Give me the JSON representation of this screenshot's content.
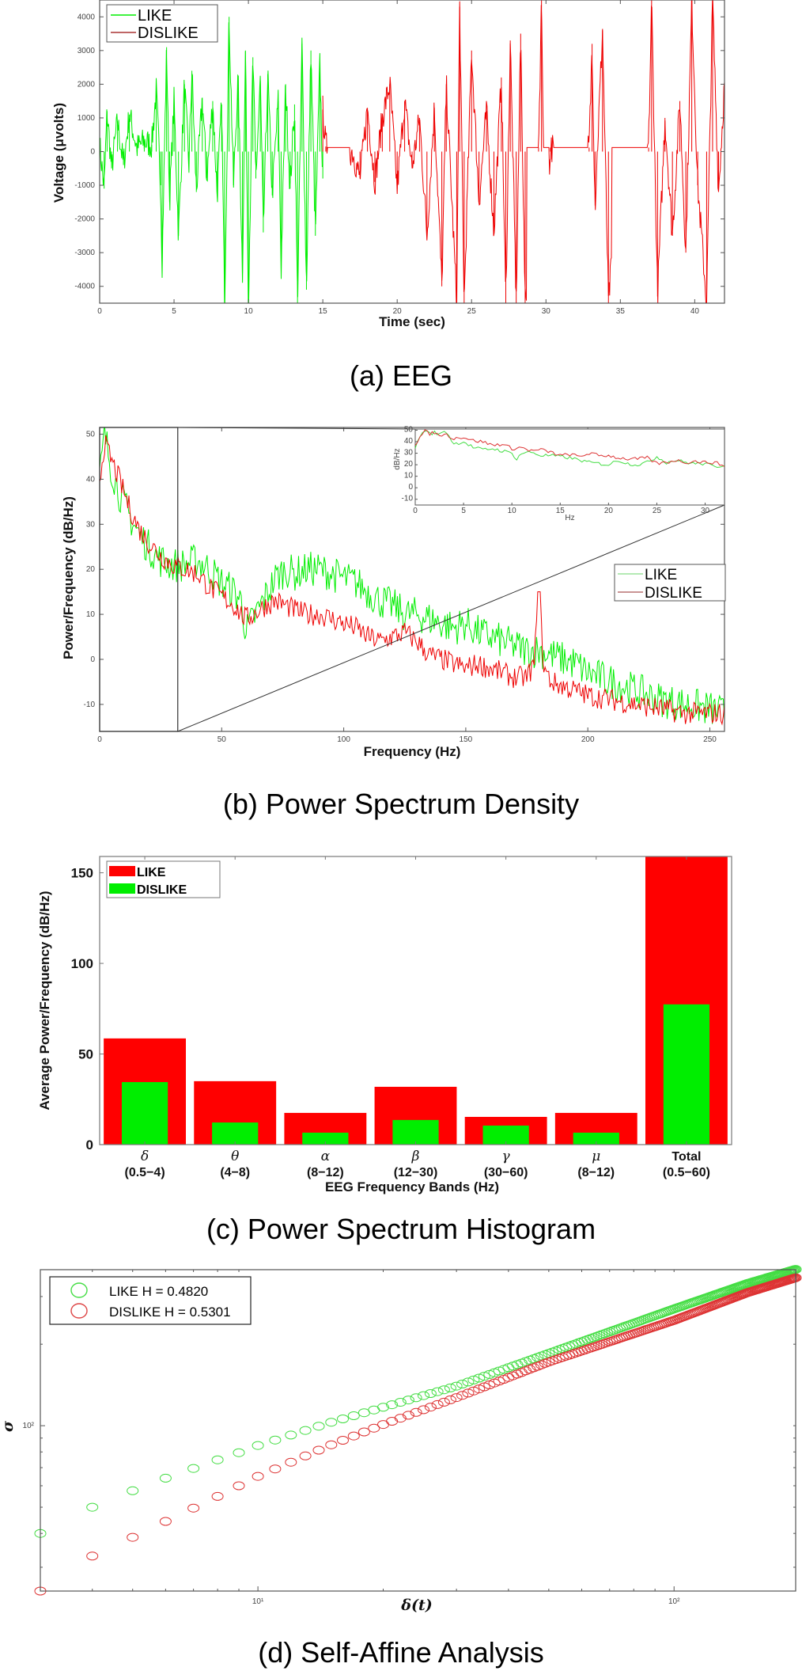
{
  "colors": {
    "like": "#00ee00",
    "dislike": "#ee0000",
    "axis": "#555555"
  },
  "chart_data": [
    {
      "id": "eeg",
      "type": "line",
      "caption": "(a) EEG",
      "xlabel": "Time (sec)",
      "ylabel": "Voltage (μvolts)",
      "xlim": [
        0,
        42
      ],
      "ylim": [
        -4500,
        4500
      ],
      "xticks": [
        0,
        5,
        10,
        15,
        20,
        25,
        30,
        35,
        40
      ],
      "yticks": [
        -4000,
        -3000,
        -2000,
        -1000,
        0,
        1000,
        2000,
        3000,
        4000
      ],
      "legend": {
        "placement": "top-left",
        "entries": [
          "LIKE",
          "DISLIKE"
        ]
      },
      "series": [
        {
          "name": "LIKE",
          "color": "like",
          "t_range": [
            0,
            15
          ],
          "x": [
            0,
            0.3,
            0.5,
            0.8,
            1.2,
            1.6,
            2,
            2.5,
            3,
            3.5,
            3.8,
            4.1,
            4.2,
            4.5,
            4.7,
            5,
            5.3,
            5.7,
            6,
            6.2,
            6.5,
            6.9,
            7.2,
            7.6,
            7.9,
            8.2,
            8.4,
            8.7,
            9,
            9.3,
            9.6,
            9.8,
            10,
            10.3,
            10.5,
            10.8,
            11,
            11.3,
            11.6,
            12,
            12.2,
            12.5,
            12.8,
            13.1,
            13.3,
            13.6,
            13.9,
            14.2,
            14.5,
            14.8,
            15
          ],
          "y": [
            200,
            -1100,
            1200,
            -500,
            900,
            -400,
            1100,
            100,
            300,
            200,
            1800,
            -1000,
            -3300,
            3100,
            -1500,
            1500,
            -2500,
            2000,
            -400,
            2400,
            -1200,
            1600,
            -800,
            1500,
            -1300,
            1400,
            -4500,
            4000,
            -1000,
            2200,
            -3600,
            3000,
            -4500,
            2800,
            -800,
            2100,
            -2400,
            2300,
            -1300,
            1500,
            -3500,
            2000,
            -1100,
            1400,
            -4500,
            3200,
            -4100,
            3000,
            -2500,
            2600,
            -800
          ]
        },
        {
          "name": "DISLIKE",
          "color": "dislike",
          "t_range": [
            15,
            42
          ],
          "x": [
            15,
            15.2,
            16,
            17,
            17.5,
            18,
            18.5,
            19,
            19.5,
            20,
            20.5,
            21,
            21.5,
            22,
            22.5,
            23,
            23.3,
            24,
            24.2,
            24.5,
            25,
            25.5,
            26,
            26.5,
            27,
            27.3,
            27.6,
            28,
            28.3,
            28.6,
            29.5,
            29.7,
            30,
            30.3,
            31,
            32.9,
            33.1,
            33.3,
            33.8,
            34.2,
            35,
            35.9,
            36.1,
            36.9,
            37.1,
            37.5,
            38,
            38.5,
            39,
            39.4,
            39.8,
            40.2,
            40.8,
            41.2,
            41.6,
            42
          ],
          "y": [
            1250,
            150,
            120,
            0,
            -800,
            1300,
            -900,
            1000,
            2000,
            -1100,
            1500,
            -500,
            1000,
            -2500,
            1300,
            -4000,
            2000,
            -4500,
            4300,
            -4500,
            3000,
            -1500,
            1200,
            -2400,
            2200,
            -4500,
            3300,
            -4500,
            3500,
            -4500,
            120,
            4500,
            -4500,
            120,
            120,
            120,
            3200,
            -1600,
            3600,
            -4500,
            120,
            100,
            450,
            120,
            4500,
            -4300,
            1000,
            -2500,
            1500,
            -3000,
            4500,
            -1000,
            -4500,
            4500,
            -1200,
            2000
          ]
        }
      ]
    },
    {
      "id": "psd",
      "type": "line",
      "caption": "(b) Power Spectrum Density",
      "xlabel": "Frequency (Hz)",
      "ylabel": "Power/Frequency (dB/Hz)",
      "xlim": [
        0,
        256
      ],
      "ylim": [
        -16,
        51.5
      ],
      "xticks": [
        0,
        50,
        100,
        150,
        200,
        250
      ],
      "yticks": [
        -10,
        0,
        10,
        20,
        30,
        40,
        50
      ],
      "legend": {
        "placement": "center-right",
        "entries": [
          "LIKE",
          "DISLIKE"
        ]
      },
      "series": [
        {
          "name": "LIKE",
          "color": "like",
          "x": [
            0,
            2,
            5,
            8,
            12,
            16,
            20,
            25,
            30,
            35,
            40,
            45,
            50,
            55,
            58,
            60,
            63,
            68,
            72,
            76,
            80,
            85,
            90,
            95,
            100,
            105,
            110,
            115,
            120,
            125,
            130,
            135,
            140,
            145,
            150,
            155,
            160,
            165,
            170,
            175,
            180,
            185,
            190,
            195,
            200,
            210,
            220,
            230,
            240,
            250,
            256
          ],
          "y": [
            40,
            50,
            42,
            37,
            32,
            28,
            25,
            22,
            21,
            21,
            22,
            20,
            17,
            15,
            13,
            6,
            9,
            14,
            18,
            20,
            19,
            20,
            20,
            19,
            18,
            17,
            15,
            13,
            12,
            10,
            10,
            9,
            8,
            7,
            8,
            6,
            5,
            4,
            3,
            2,
            2,
            1,
            0,
            -1,
            -3,
            -5,
            -7,
            -9,
            -10,
            -11,
            -12
          ]
        },
        {
          "name": "DISLIKE",
          "color": "dislike",
          "x": [
            0,
            2,
            5,
            8,
            12,
            16,
            20,
            25,
            30,
            35,
            40,
            45,
            50,
            55,
            58,
            60,
            63,
            68,
            72,
            76,
            80,
            85,
            90,
            95,
            100,
            105,
            110,
            115,
            120,
            125,
            130,
            135,
            140,
            145,
            150,
            155,
            160,
            165,
            170,
            175,
            178,
            180,
            182,
            185,
            190,
            200,
            210,
            220,
            230,
            240,
            250,
            256
          ],
          "y": [
            40,
            48,
            44,
            40,
            34,
            29,
            26,
            23,
            21,
            20,
            19,
            16,
            14,
            12,
            10,
            9,
            10,
            12,
            13,
            12,
            11,
            10,
            10,
            9,
            8,
            7,
            5,
            4,
            5,
            6,
            4,
            1,
            0,
            -1,
            -2,
            -1,
            -2,
            -3,
            -4,
            -4,
            -1,
            15,
            -2,
            -5,
            -6,
            -8,
            -9,
            -10,
            -11,
            -12,
            -12,
            -12
          ]
        }
      ],
      "inset": {
        "xlabel": "Hz",
        "ylabel": "dB/Hz",
        "xlim": [
          0,
          32
        ],
        "ylim": [
          -15,
          51
        ],
        "xticks": [
          0,
          5,
          10,
          15,
          20,
          25,
          30
        ],
        "yticks": [
          -10,
          0,
          10,
          20,
          30,
          40,
          50
        ],
        "zoom_region_x": [
          0,
          32
        ],
        "series": [
          {
            "name": "LIKE",
            "color": "like",
            "x": [
              0,
              0.5,
              1,
              1.5,
              2,
              2.5,
              3,
              3.5,
              4,
              5,
              6,
              7,
              8,
              9,
              10,
              10.5,
              11,
              12,
              13,
              14,
              15,
              16,
              17,
              18,
              19,
              20,
              21,
              22,
              23,
              24,
              25,
              26,
              27,
              28,
              29,
              30,
              31,
              32
            ],
            "y": [
              35,
              45,
              50,
              47,
              48,
              46,
              50,
              45,
              38,
              40,
              35,
              33,
              34,
              32,
              30,
              25,
              30,
              31,
              28,
              28,
              27,
              26,
              24,
              22,
              21,
              20,
              24,
              21,
              20,
              22,
              27,
              22,
              24,
              22,
              21,
              21,
              18,
              20
            ]
          },
          {
            "name": "DISLIKE",
            "color": "dislike",
            "x": [
              0,
              0.5,
              1,
              1.5,
              2,
              2.5,
              3,
              3.5,
              4,
              5,
              6,
              7,
              8,
              9,
              10,
              11,
              12,
              13,
              14,
              15,
              16,
              17,
              18,
              19,
              20,
              21,
              22,
              23,
              24,
              25,
              26,
              27,
              28,
              29,
              30,
              31,
              32
            ],
            "y": [
              38,
              44,
              49,
              47,
              48,
              45,
              47,
              45,
              43,
              44,
              41,
              40,
              37,
              38,
              34,
              35,
              32,
              33,
              31,
              28,
              29,
              27,
              30,
              28,
              28,
              26,
              25,
              25,
              26,
              21,
              22,
              24,
              22,
              23,
              22,
              22,
              19
            ]
          }
        ]
      }
    },
    {
      "id": "histogram",
      "type": "bar",
      "caption": "(c) Power Spectrum Histogram",
      "xlabel": "EEG Frequency Bands (Hz)",
      "ylabel": "Average Power/Frequency (dB/Hz)",
      "ylim": [
        0,
        159
      ],
      "yticks": [
        0,
        50,
        100,
        150
      ],
      "categories": [
        {
          "symbol": "δ",
          "range": "(0.5−4)"
        },
        {
          "symbol": "θ",
          "range": "(4−8)"
        },
        {
          "symbol": "α",
          "range": "(8−12)"
        },
        {
          "symbol": "β",
          "range": "(12−30)"
        },
        {
          "symbol": "γ",
          "range": "(30−60)"
        },
        {
          "symbol": "μ",
          "range": "(8−12)"
        },
        {
          "symbol": "Total",
          "range": "(0.5−60)"
        }
      ],
      "legend": {
        "placement": "top-left",
        "entries": [
          "LIKE",
          "DISLIKE"
        ]
      },
      "series": [
        {
          "name": "LIKE",
          "color": "dislike",
          "values": [
            58.6,
            35,
            17.5,
            31.9,
            15.3,
            17.5,
            159
          ]
        },
        {
          "name": "DISLIKE",
          "color": "like",
          "values": [
            34.5,
            12.2,
            6.6,
            13.6,
            10.5,
            6.6,
            77.4
          ]
        }
      ]
    },
    {
      "id": "self-affine",
      "type": "scatter",
      "caption": "(d) Self-Affine Analysis",
      "xlabel": "δ(t)",
      "ylabel": "σ",
      "xscale": "log",
      "yscale": "log",
      "xlim": [
        3,
        196
      ],
      "ylim": [
        24.5,
        377
      ],
      "xticks_labeled": [
        {
          "value": 10,
          "label": "10¹"
        },
        {
          "value": 100,
          "label": "10²"
        }
      ],
      "yticks_labeled": [
        {
          "value": 100,
          "label": "10²"
        }
      ],
      "legend": {
        "placement": "top-left",
        "entries": [
          "LIKE H = 0.4820",
          "DISLIKE H = 0.5301"
        ]
      },
      "series": [
        {
          "name": "LIKE H = 0.4820",
          "color": "like",
          "hurst": 0.482,
          "x_range": [
            3,
            196
          ],
          "anchors_x": [
            3,
            4,
            5,
            6,
            7,
            8,
            9,
            10,
            15,
            20,
            30,
            50,
            100,
            150,
            196
          ],
          "anchors_y": [
            40,
            50,
            57.5,
            64,
            69.5,
            74.8,
            79.5,
            84.5,
            103,
            117,
            140,
            185,
            270,
            335,
            378
          ]
        },
        {
          "name": "DISLIKE H = 0.5301",
          "color": "dislike",
          "hurst": 0.5301,
          "x_range": [
            3,
            196
          ],
          "anchors_x": [
            3,
            4,
            5,
            6,
            7,
            8,
            9,
            10,
            15,
            20,
            30,
            50,
            100,
            150,
            196
          ],
          "anchors_y": [
            24.5,
            33,
            38.7,
            44.3,
            49.6,
            54.8,
            60,
            65,
            85,
            101,
            127,
            172,
            245,
            310,
            352
          ]
        }
      ]
    }
  ]
}
